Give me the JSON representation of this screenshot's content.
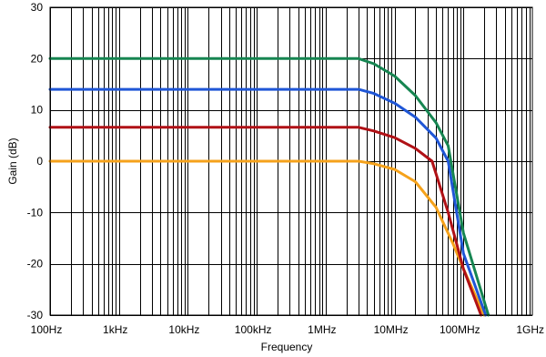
{
  "chart_data": {
    "type": "line",
    "title": "",
    "xlabel": "Frequency",
    "ylabel": "Gain (dB)",
    "xscale": "log",
    "xlim": [
      100,
      1000000000
    ],
    "ylim": [
      -30,
      30
    ],
    "grid": true,
    "x_ticks": [
      100,
      1000,
      10000,
      100000,
      1000000,
      10000000,
      100000000,
      1000000000
    ],
    "x_tick_labels": [
      "100Hz",
      "1kHz",
      "10kHz",
      "100kHz",
      "1MHz",
      "10MHz",
      "100MHz",
      "1GHz"
    ],
    "y_ticks": [
      -30,
      -20,
      -10,
      0,
      10,
      20,
      30
    ],
    "y_tick_labels": [
      "-30",
      "-20",
      "-10",
      "0",
      "10",
      "20",
      "30"
    ],
    "series": [
      {
        "color": "#f5a21b",
        "points": [
          [
            100,
            0
          ],
          [
            3000000,
            0
          ],
          [
            5000000,
            -0.5
          ],
          [
            10000000,
            -1.6
          ],
          [
            20000000,
            -4
          ],
          [
            40000000,
            -9
          ],
          [
            70000000,
            -16
          ],
          [
            100000000,
            -21
          ],
          [
            200000000,
            -30
          ]
        ]
      },
      {
        "color": "#b01116",
        "points": [
          [
            100,
            6.6
          ],
          [
            3000000,
            6.6
          ],
          [
            5000000,
            5.9
          ],
          [
            10000000,
            4.6
          ],
          [
            20000000,
            2.5
          ],
          [
            35000000,
            0
          ],
          [
            60000000,
            -10
          ],
          [
            100000000,
            -21
          ],
          [
            180000000,
            -30
          ]
        ]
      },
      {
        "color": "#1f56d6",
        "points": [
          [
            100,
            14
          ],
          [
            3000000,
            14
          ],
          [
            5000000,
            13.2
          ],
          [
            10000000,
            11.3
          ],
          [
            20000000,
            8.6
          ],
          [
            40000000,
            4.5
          ],
          [
            60000000,
            0
          ],
          [
            100000000,
            -18
          ],
          [
            210000000,
            -30
          ]
        ]
      },
      {
        "color": "#168551",
        "points": [
          [
            100,
            20
          ],
          [
            3000000,
            20
          ],
          [
            5000000,
            19
          ],
          [
            10000000,
            16.6
          ],
          [
            20000000,
            12.8
          ],
          [
            40000000,
            7.5
          ],
          [
            60000000,
            3
          ],
          [
            100000000,
            -14
          ],
          [
            230000000,
            -30
          ]
        ]
      }
    ]
  }
}
